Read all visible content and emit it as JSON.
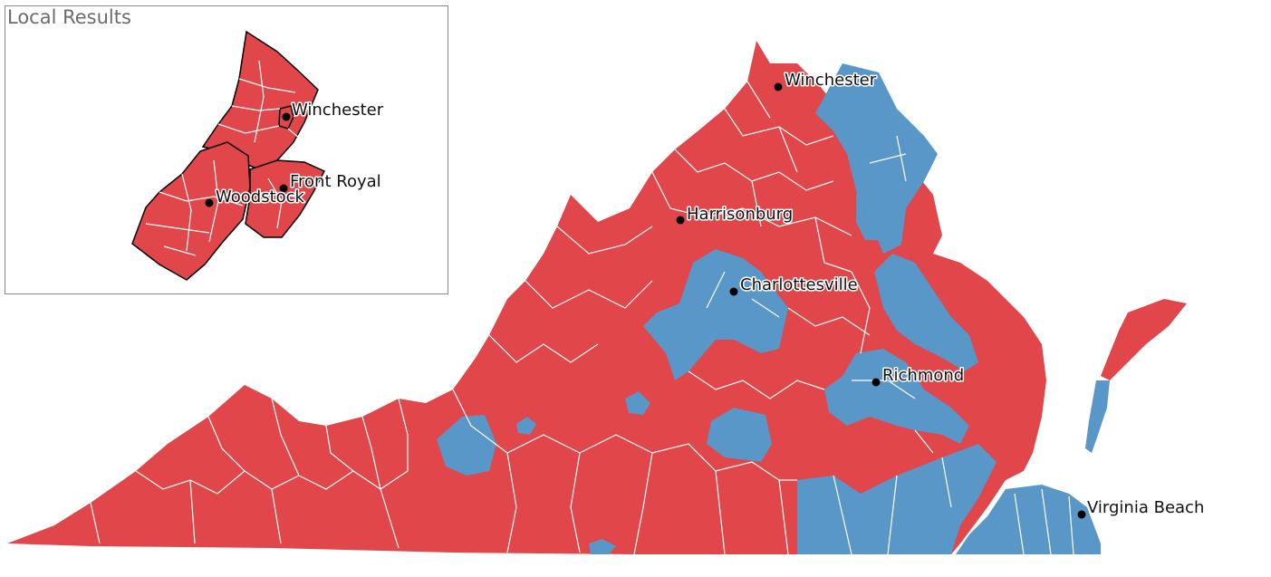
{
  "inset": {
    "title": "Local Results",
    "cities": [
      {
        "name": "Winchester"
      },
      {
        "name": "Front Royal"
      },
      {
        "name": "Woodstock"
      }
    ]
  },
  "main_map": {
    "cities": [
      {
        "name": "Winchester"
      },
      {
        "name": "Harrisonburg"
      },
      {
        "name": "Charlottesville"
      },
      {
        "name": "Richmond"
      },
      {
        "name": "Virginia Beach"
      }
    ]
  },
  "colors": {
    "republican": "#e0464a",
    "democrat": "#5897c8",
    "county_border": "#ffffff",
    "district_border": "#000000"
  }
}
